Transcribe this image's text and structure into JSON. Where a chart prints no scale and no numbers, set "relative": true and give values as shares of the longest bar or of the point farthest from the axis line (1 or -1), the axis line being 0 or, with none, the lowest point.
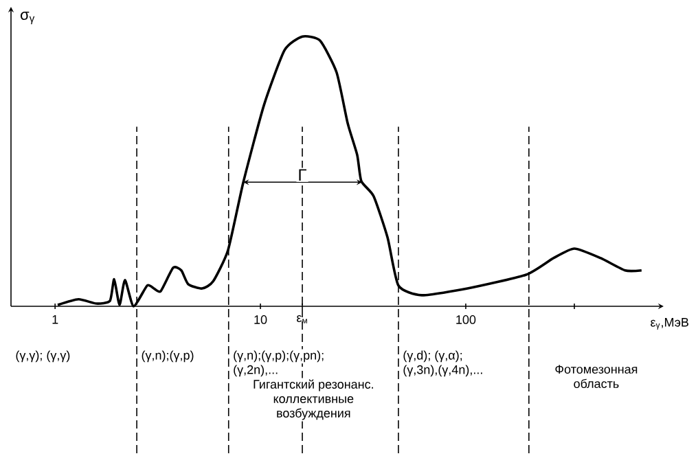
{
  "chart_data": {
    "type": "line",
    "relative": true,
    "log": "x",
    "ylabel": "σ$_{γ}$",
    "xlabel": "ε$_{γ}$,МэВ",
    "xlim": [
      0.61,
      920
    ],
    "xticks": [
      1,
      10,
      {
        "value": 16,
        "label": "ε$_{м}$"
      },
      100,
      {
        "value": 338,
        "label": null
      }
    ],
    "series": [
      {
        "color": "#000000",
        "x": [
          1.03,
          1.3,
          1.59,
          1.85,
          1.94,
          2.06,
          2.19,
          2.41,
          2.81,
          3.03,
          3.27,
          3.76,
          4.12,
          4.45,
          5.2,
          5.88,
          6.96,
          8.25,
          10.4,
          13.1,
          16,
          19.5,
          23.5,
          26.6,
          29.6,
          31,
          35.6,
          41.6,
          47,
          61.1,
          102,
          197,
          268,
          338,
          453,
          597,
          718
        ],
        "values": [
          0.005,
          0.026,
          0.01,
          0.02,
          0.1,
          0.005,
          0.097,
          0,
          0.077,
          0.066,
          0.056,
          0.143,
          0.133,
          0.082,
          0.066,
          0.092,
          0.209,
          0.459,
          0.745,
          0.949,
          1,
          0.985,
          0.867,
          0.679,
          0.561,
          0.464,
          0.408,
          0.255,
          0.077,
          0.041,
          0.066,
          0.117,
          0.179,
          0.214,
          0.179,
          0.133,
          0.133
        ]
      }
    ],
    "ref_lines": [
      {
        "axis": "x",
        "value": 2.5,
        "line_style": "dashed"
      },
      {
        "axis": "x",
        "value": 7,
        "line_style": "dashed"
      },
      {
        "axis": "x",
        "value": 16,
        "line_style": "dashed"
      },
      {
        "axis": "x",
        "value": 47,
        "line_style": "dashed"
      },
      {
        "axis": "x",
        "value": 203,
        "line_style": "dashed"
      }
    ],
    "annotations": [
      "(γ,γ); (γ,γ)",
      "(γ,n);(γ,p)",
      "(γ,n);(γ,p);(γ,pn);",
      "(γ,2n),...",
      "Гигантский резонанс. коллективные возбуждения",
      "(γ,d); (γ,α);",
      "(γ,3n),(γ,4n),...",
      "Фотомезонная область",
      {
        "text": "Γ",
        "x": 16,
        "y": 0.46
      }
    ]
  }
}
